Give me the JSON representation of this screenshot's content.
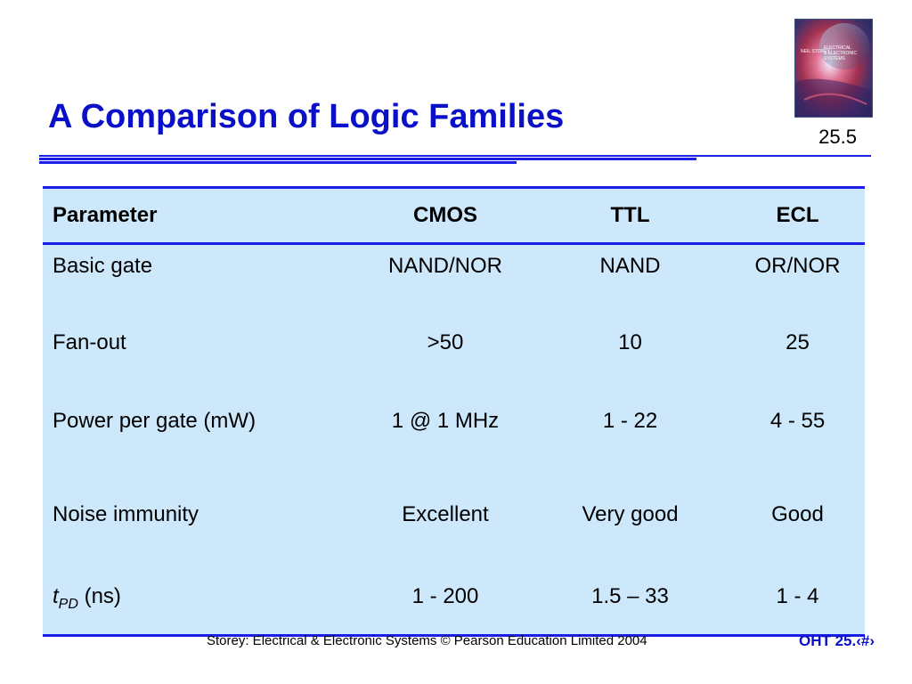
{
  "slide": {
    "title": "A Comparison of Logic Families",
    "number": "25.5",
    "cover_lines": [
      "NEIL STOREY",
      "ELECTRICAL",
      "& ELECTRONIC",
      "SYSTEMS"
    ]
  },
  "table": {
    "headers": [
      "Parameter",
      "CMOS",
      "TTL",
      "ECL"
    ],
    "rows": [
      {
        "param": "Basic gate",
        "cmos": "NAND/NOR",
        "ttl": "NAND",
        "ecl": "OR/NOR"
      },
      {
        "param": "Fan-out",
        "cmos": ">50",
        "ttl": "10",
        "ecl": "25"
      },
      {
        "param": "Power per gate (mW)",
        "cmos": "1 @ 1 MHz",
        "ttl": "1 - 22",
        "ecl": "4 - 55"
      },
      {
        "param": "Noise immunity",
        "cmos": "Excellent",
        "ttl": "Very good",
        "ecl": "Good"
      },
      {
        "param_symbol": "t",
        "param_subscript": "PD",
        "param_unit": " (ns)",
        "cmos": "1 - 200",
        "ttl": "1.5 – 33",
        "ecl": "1 - 4"
      }
    ]
  },
  "footer": {
    "text": "Storey: Electrical & Electronic Systems © Pearson Education Limited 2004",
    "oht": "OHT 25.‹#›"
  },
  "colors": {
    "title": "#0a10c8",
    "rule": "#1a1ee6",
    "table_bg": "#cde8fb"
  }
}
